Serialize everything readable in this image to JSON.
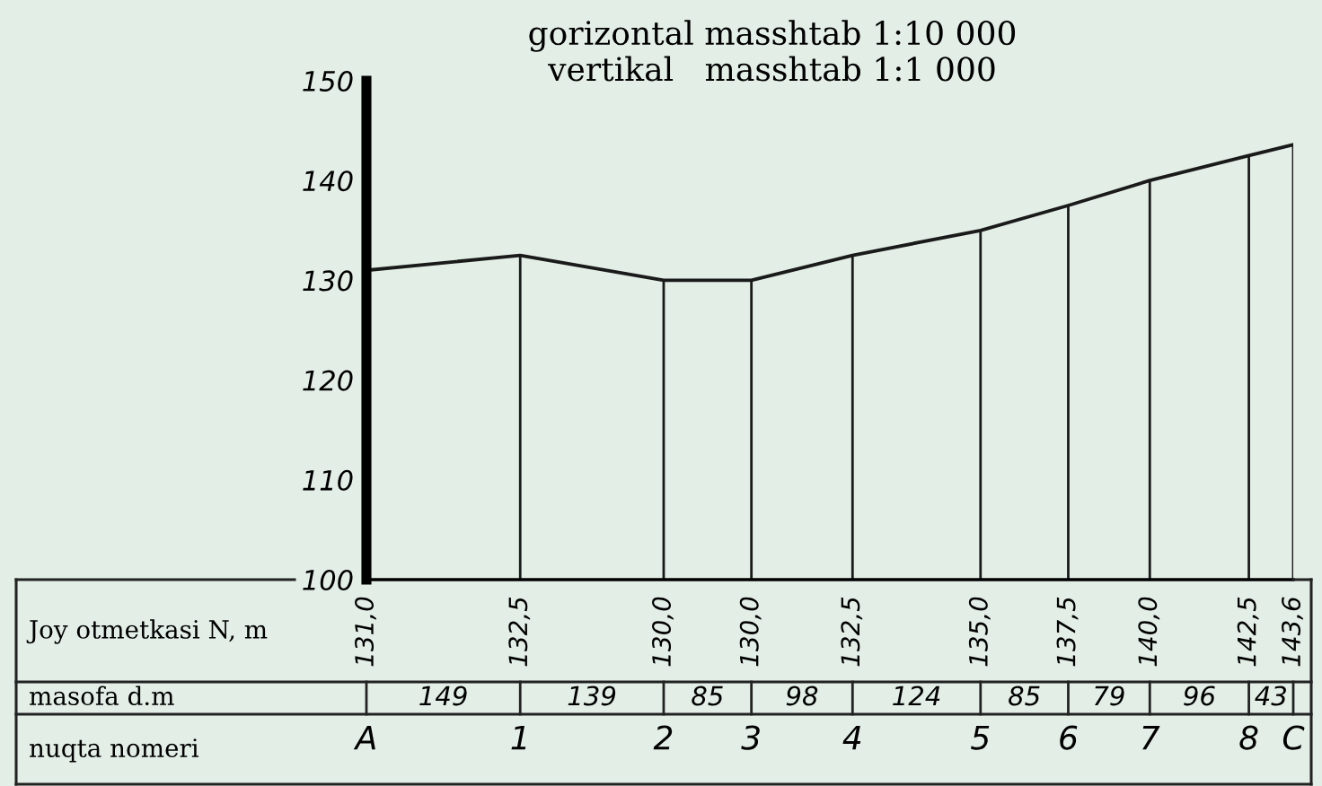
{
  "chart_data": {
    "type": "line",
    "title": "gorizontal masshtab 1:10 000",
    "subtitle": "vertikal   masshtab 1:1 000",
    "categories": [
      "A",
      "1",
      "2",
      "3",
      "4",
      "5",
      "6",
      "7",
      "8",
      "C"
    ],
    "series": [
      {
        "color": "#1a1a1a",
        "values": [
          131.0,
          132.5,
          130.0,
          130.0,
          132.5,
          135.0,
          137.5,
          140.0,
          142.5,
          143.6
        ],
        "value_labels": [
          "131,0",
          "132,5",
          "130,0",
          "130,0",
          "132,5",
          "135,0",
          "137,5",
          "140,0",
          "142,5",
          "143,6"
        ]
      }
    ],
    "ylim": [
      100,
      150
    ],
    "yticks": [
      100,
      110,
      120,
      130,
      140,
      150
    ],
    "grid": "x",
    "marker": "none",
    "line_style": "solid",
    "annotations": [
      "Joy otmetkasi N, m",
      "masofa d.m",
      "nuqta nomeri",
      "149",
      "139",
      "85",
      "98",
      "124",
      "85",
      "79",
      "96",
      "43"
    ]
  }
}
